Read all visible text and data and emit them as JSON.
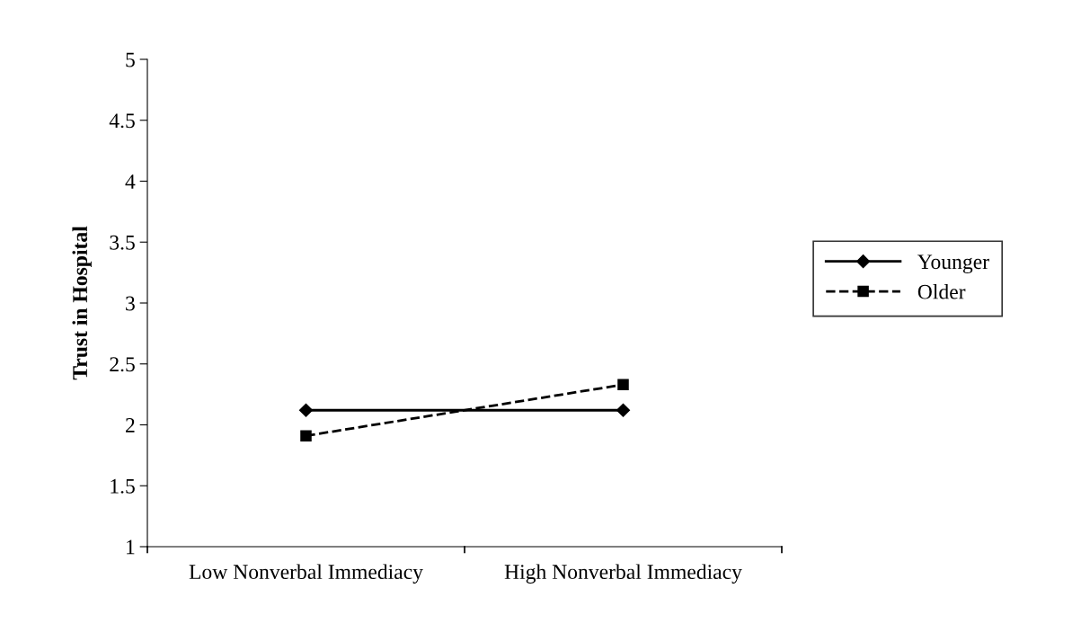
{
  "chart_data": {
    "type": "line",
    "ylabel": "Trust in Hospital",
    "categories": [
      "Low Nonverbal Immediacy",
      "High Nonverbal Immediacy"
    ],
    "series": [
      {
        "name": "Younger",
        "color": "#000000",
        "values": [
          2.12,
          2.12
        ],
        "marker": "diamond",
        "line_style": "solid"
      },
      {
        "name": "Older",
        "color": "#000000",
        "values": [
          1.91,
          2.33
        ],
        "marker": "square",
        "line_style": "dashed"
      }
    ],
    "ylim": [
      1,
      5
    ],
    "yticks": [
      1,
      1.5,
      2,
      2.5,
      3,
      3.5,
      4,
      4.5,
      5
    ],
    "grid": false,
    "legend": "right"
  }
}
